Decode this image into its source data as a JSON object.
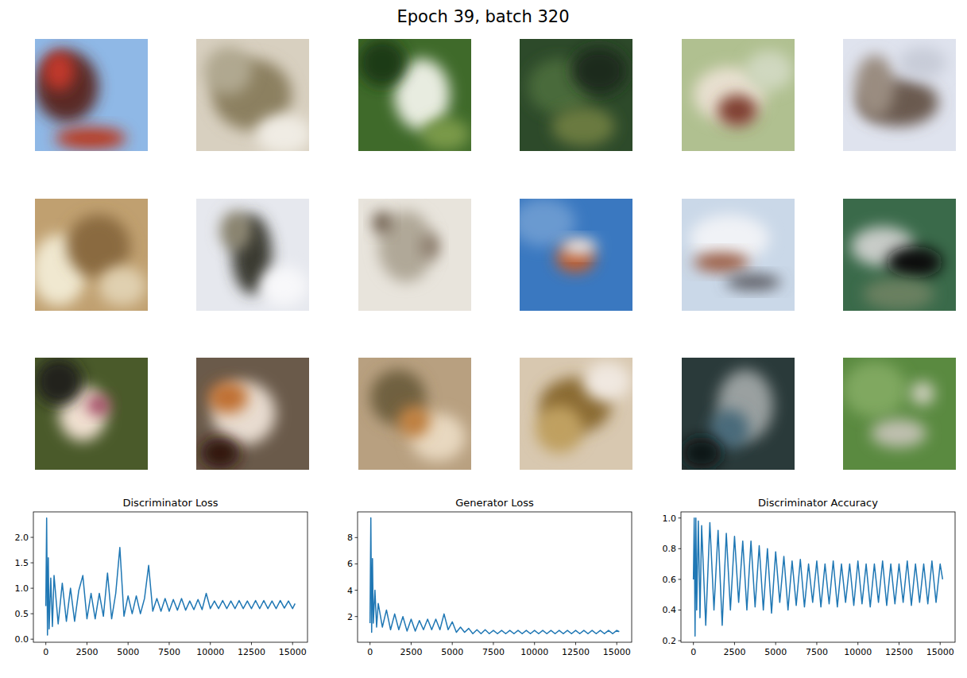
{
  "title": "Epoch 39, batch 320",
  "chart_data": [
    {
      "type": "line",
      "title": "Discriminator Loss",
      "x": [
        0,
        50,
        100,
        150,
        200,
        300,
        400,
        500,
        750,
        1000,
        1250,
        1500,
        1750,
        2000,
        2250,
        2500,
        2750,
        3000,
        3250,
        3500,
        3750,
        4000,
        4250,
        4500,
        4750,
        5000,
        5250,
        5500,
        5750,
        6000,
        6250,
        6500,
        6750,
        7000,
        7250,
        7500,
        7750,
        8000,
        8250,
        8500,
        8750,
        9000,
        9250,
        9500,
        9750,
        10000,
        10250,
        10500,
        10750,
        11000,
        11250,
        11500,
        11750,
        12000,
        12250,
        12500,
        12750,
        13000,
        13250,
        13500,
        13750,
        14000,
        14250,
        14500,
        14750,
        15000,
        15150
      ],
      "xlim": [
        -757,
        15907
      ],
      "xticks": [
        0,
        2500,
        5000,
        7500,
        10000,
        12500,
        15000
      ],
      "ylim": [
        -0.06,
        2.5
      ],
      "yticks": [
        {
          "value": 0,
          "label": "0.0"
        },
        {
          "value": 0.5,
          "label": "0.5"
        },
        {
          "value": 1,
          "label": "1.0"
        },
        {
          "value": 1.5,
          "label": "1.5"
        },
        {
          "value": 2,
          "label": "2.0"
        }
      ],
      "series": [
        {
          "color": "#1f77b4",
          "values": [
            0.65,
            2.38,
            0.08,
            1.6,
            0.2,
            1.2,
            0.25,
            1.25,
            0.3,
            1.1,
            0.35,
            1.0,
            0.35,
            0.95,
            1.25,
            0.4,
            0.9,
            0.4,
            0.9,
            0.45,
            1.3,
            0.4,
            0.9,
            1.8,
            0.45,
            0.85,
            0.5,
            0.85,
            0.5,
            0.8,
            1.45,
            0.55,
            0.8,
            0.55,
            0.8,
            0.55,
            0.78,
            0.57,
            0.8,
            0.57,
            0.75,
            0.58,
            0.78,
            0.58,
            0.9,
            0.6,
            0.75,
            0.6,
            0.76,
            0.6,
            0.75,
            0.6,
            0.76,
            0.6,
            0.75,
            0.6,
            0.76,
            0.6,
            0.76,
            0.6,
            0.75,
            0.6,
            0.76,
            0.61,
            0.75,
            0.6,
            0.7
          ]
        }
      ]
    },
    {
      "type": "line",
      "title": "Generator Loss",
      "x": [
        0,
        50,
        100,
        150,
        200,
        300,
        400,
        500,
        750,
        1000,
        1250,
        1500,
        1750,
        2000,
        2250,
        2500,
        2750,
        3000,
        3250,
        3500,
        3750,
        4000,
        4250,
        4500,
        4750,
        5000,
        5250,
        5500,
        5750,
        6000,
        6250,
        6500,
        6750,
        7000,
        7250,
        7500,
        7750,
        8000,
        8250,
        8500,
        8750,
        9000,
        9250,
        9500,
        9750,
        10000,
        10250,
        10500,
        10750,
        11000,
        11250,
        11500,
        11750,
        12000,
        12250,
        12500,
        12750,
        13000,
        13250,
        13500,
        13750,
        14000,
        14250,
        14500,
        14750,
        15000,
        15150
      ],
      "xlim": [
        -757,
        15907
      ],
      "xticks": [
        0,
        2500,
        5000,
        7500,
        10000,
        12500,
        15000
      ],
      "ylim": [
        0.05,
        9.95
      ],
      "yticks": [
        2,
        4,
        6,
        8
      ],
      "series": [
        {
          "color": "#1f77b4",
          "values": [
            1.5,
            9.5,
            0.8,
            6.4,
            1.5,
            4.0,
            1.2,
            3.0,
            1.2,
            2.5,
            1.0,
            2.2,
            1.0,
            2.0,
            0.9,
            1.8,
            0.9,
            1.7,
            1.0,
            1.8,
            1.0,
            1.8,
            1.0,
            2.2,
            1.0,
            1.6,
            0.8,
            1.2,
            0.8,
            1.1,
            0.7,
            1.0,
            0.7,
            1.0,
            0.7,
            0.95,
            0.7,
            0.95,
            0.7,
            0.95,
            0.7,
            0.95,
            0.7,
            0.95,
            0.7,
            0.95,
            0.7,
            0.95,
            0.7,
            0.95,
            0.7,
            0.95,
            0.7,
            0.95,
            0.7,
            0.95,
            0.7,
            0.95,
            0.7,
            0.95,
            0.7,
            0.95,
            0.7,
            0.95,
            0.7,
            0.95,
            0.85
          ]
        }
      ]
    },
    {
      "type": "line",
      "title": "Discriminator Accuracy",
      "x": [
        0,
        50,
        100,
        150,
        200,
        300,
        400,
        500,
        750,
        1000,
        1250,
        1500,
        1750,
        2000,
        2250,
        2500,
        2750,
        3000,
        3250,
        3500,
        3750,
        4000,
        4250,
        4500,
        4750,
        5000,
        5250,
        5500,
        5750,
        6000,
        6250,
        6500,
        6750,
        7000,
        7250,
        7500,
        7750,
        8000,
        8250,
        8500,
        8750,
        9000,
        9250,
        9500,
        9750,
        10000,
        10250,
        10500,
        10750,
        11000,
        11250,
        11500,
        11750,
        12000,
        12250,
        12500,
        12750,
        13000,
        13250,
        13500,
        13750,
        14000,
        14250,
        14500,
        14750,
        15000,
        15150
      ],
      "xlim": [
        -757,
        15907
      ],
      "xticks": [
        0,
        2500,
        5000,
        7500,
        10000,
        12500,
        15000
      ],
      "ylim": [
        0.19,
        1.04
      ],
      "yticks": [
        0.2,
        0.4,
        0.6,
        0.8,
        {
          "value": 1,
          "label": "1.0"
        }
      ],
      "series": [
        {
          "color": "#1f77b4",
          "values": [
            0.6,
            1.0,
            0.23,
            1.0,
            0.4,
            0.98,
            0.35,
            0.95,
            0.3,
            0.97,
            0.4,
            0.92,
            0.3,
            0.9,
            0.4,
            0.88,
            0.45,
            0.85,
            0.4,
            0.85,
            0.42,
            0.82,
            0.4,
            0.8,
            0.38,
            0.78,
            0.45,
            0.75,
            0.4,
            0.72,
            0.43,
            0.73,
            0.42,
            0.7,
            0.45,
            0.72,
            0.42,
            0.7,
            0.44,
            0.72,
            0.42,
            0.7,
            0.45,
            0.7,
            0.43,
            0.72,
            0.44,
            0.7,
            0.42,
            0.7,
            0.45,
            0.72,
            0.43,
            0.7,
            0.44,
            0.7,
            0.45,
            0.72,
            0.43,
            0.7,
            0.45,
            0.7,
            0.44,
            0.72,
            0.45,
            0.7,
            0.6
          ]
        }
      ]
    }
  ]
}
